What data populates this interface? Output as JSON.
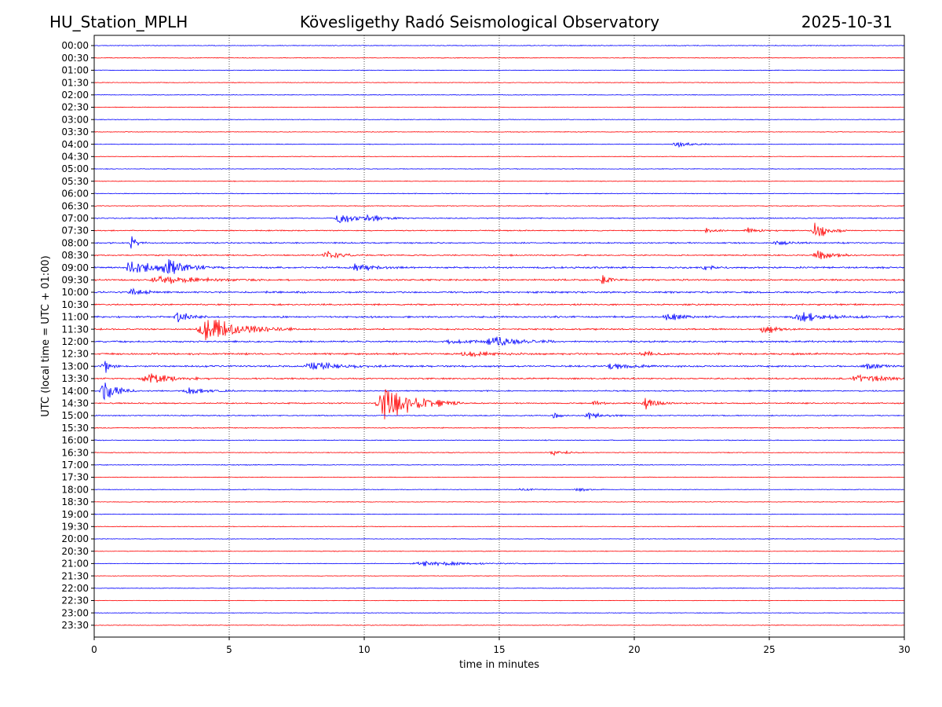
{
  "header": {
    "station": "HU_Station_MPLH",
    "observatory": "Kövesligethy Radó Seismological Observatory",
    "date": "2025-10-31"
  },
  "chart_data": {
    "type": "line",
    "title": "Kövesligethy Radó Seismological Observatory",
    "xlabel": "time in minutes",
    "ylabel": "UTC (local time = UTC + 01:00)",
    "xlim": [
      0,
      30
    ],
    "xticks": [
      0,
      5,
      10,
      15,
      20,
      25,
      30
    ],
    "vertical_gridlines": [
      5,
      10,
      15,
      20,
      25
    ],
    "row_labels": [
      "00:00",
      "00:30",
      "01:00",
      "01:30",
      "02:00",
      "02:30",
      "03:00",
      "03:30",
      "04:00",
      "04:30",
      "05:00",
      "05:30",
      "06:00",
      "06:30",
      "07:00",
      "07:30",
      "08:00",
      "08:30",
      "09:00",
      "09:30",
      "10:00",
      "10:30",
      "11:00",
      "11:30",
      "12:00",
      "12:30",
      "13:00",
      "13:30",
      "14:00",
      "14:30",
      "15:00",
      "15:30",
      "16:00",
      "16:30",
      "17:00",
      "17:30",
      "18:00",
      "18:30",
      "19:00",
      "19:30",
      "20:00",
      "20:30",
      "21:00",
      "21:30",
      "22:00",
      "22:30",
      "23:00",
      "23:30"
    ],
    "trace_colors": [
      "#0000ff",
      "#ff0000"
    ],
    "baseline_noise": [
      0.07,
      0.06,
      0.06,
      0.06,
      0.06,
      0.06,
      0.06,
      0.06,
      0.06,
      0.06,
      0.06,
      0.06,
      0.07,
      0.07,
      0.1,
      0.1,
      0.12,
      0.12,
      0.16,
      0.16,
      0.16,
      0.14,
      0.16,
      0.14,
      0.16,
      0.16,
      0.16,
      0.14,
      0.12,
      0.12,
      0.09,
      0.08,
      0.08,
      0.07,
      0.07,
      0.06,
      0.06,
      0.06,
      0.06,
      0.06,
      0.06,
      0.06,
      0.06,
      0.05,
      0.06,
      0.05,
      0.06,
      0.06
    ],
    "events": [
      {
        "row": 8,
        "t": 21.6,
        "amp": 0.5,
        "dur": 0.7
      },
      {
        "row": 14,
        "t": 9.1,
        "amp": 1.2,
        "dur": 0.5
      },
      {
        "row": 14,
        "t": 10.2,
        "amp": 0.7,
        "dur": 0.6
      },
      {
        "row": 15,
        "t": 22.7,
        "amp": 0.6,
        "dur": 0.3
      },
      {
        "row": 15,
        "t": 24.2,
        "amp": 0.6,
        "dur": 0.4
      },
      {
        "row": 15,
        "t": 26.7,
        "amp": 2.2,
        "dur": 0.4
      },
      {
        "row": 16,
        "t": 1.35,
        "amp": 1.8,
        "dur": 0.2
      },
      {
        "row": 16,
        "t": 25.3,
        "amp": 0.5,
        "dur": 0.5
      },
      {
        "row": 17,
        "t": 8.6,
        "amp": 1.0,
        "dur": 0.5
      },
      {
        "row": 17,
        "t": 26.8,
        "amp": 1.0,
        "dur": 0.5
      },
      {
        "row": 18,
        "t": 1.4,
        "amp": 1.4,
        "dur": 0.9
      },
      {
        "row": 18,
        "t": 2.7,
        "amp": 1.2,
        "dur": 0.7
      },
      {
        "row": 18,
        "t": 9.7,
        "amp": 0.8,
        "dur": 0.6
      },
      {
        "row": 18,
        "t": 22.6,
        "amp": 0.4,
        "dur": 0.5
      },
      {
        "row": 19,
        "t": 2.5,
        "amp": 0.8,
        "dur": 1.2
      },
      {
        "row": 19,
        "t": 18.8,
        "amp": 0.9,
        "dur": 0.3
      },
      {
        "row": 20,
        "t": 1.4,
        "amp": 0.6,
        "dur": 0.5
      },
      {
        "row": 22,
        "t": 3.1,
        "amp": 1.2,
        "dur": 0.4
      },
      {
        "row": 22,
        "t": 21.2,
        "amp": 0.6,
        "dur": 0.6
      },
      {
        "row": 22,
        "t": 26.2,
        "amp": 0.8,
        "dur": 1.1
      },
      {
        "row": 23,
        "t": 4.2,
        "amp": 2.6,
        "dur": 1.1
      },
      {
        "row": 23,
        "t": 24.8,
        "amp": 1.0,
        "dur": 0.4
      },
      {
        "row": 24,
        "t": 14.8,
        "amp": 1.2,
        "dur": 0.8
      },
      {
        "row": 24,
        "t": 13.2,
        "amp": 0.4,
        "dur": 0.8
      },
      {
        "row": 25,
        "t": 13.8,
        "amp": 0.5,
        "dur": 0.8
      },
      {
        "row": 25,
        "t": 20.3,
        "amp": 0.5,
        "dur": 0.5
      },
      {
        "row": 26,
        "t": 0.35,
        "amp": 1.8,
        "dur": 0.2
      },
      {
        "row": 26,
        "t": 8.1,
        "amp": 0.8,
        "dur": 1.0
      },
      {
        "row": 26,
        "t": 19.2,
        "amp": 0.6,
        "dur": 0.6
      },
      {
        "row": 26,
        "t": 28.6,
        "amp": 0.5,
        "dur": 0.5
      },
      {
        "row": 27,
        "t": 2.0,
        "amp": 1.0,
        "dur": 0.8
      },
      {
        "row": 27,
        "t": 28.3,
        "amp": 0.9,
        "dur": 0.8
      },
      {
        "row": 28,
        "t": 0.35,
        "amp": 2.5,
        "dur": 0.4
      },
      {
        "row": 28,
        "t": 3.5,
        "amp": 0.7,
        "dur": 0.6
      },
      {
        "row": 29,
        "t": 10.8,
        "amp": 4.0,
        "dur": 1.0
      },
      {
        "row": 29,
        "t": 18.5,
        "amp": 0.8,
        "dur": 0.3
      },
      {
        "row": 29,
        "t": 20.4,
        "amp": 1.2,
        "dur": 0.4
      },
      {
        "row": 30,
        "t": 17.0,
        "amp": 0.8,
        "dur": 0.2
      },
      {
        "row": 30,
        "t": 18.3,
        "amp": 0.7,
        "dur": 0.5
      },
      {
        "row": 33,
        "t": 17.0,
        "amp": 0.7,
        "dur": 0.4
      },
      {
        "row": 36,
        "t": 17.9,
        "amp": 0.4,
        "dur": 0.4
      },
      {
        "row": 36,
        "t": 15.8,
        "amp": 0.3,
        "dur": 0.4
      },
      {
        "row": 42,
        "t": 12.3,
        "amp": 0.5,
        "dur": 1.6
      }
    ]
  }
}
